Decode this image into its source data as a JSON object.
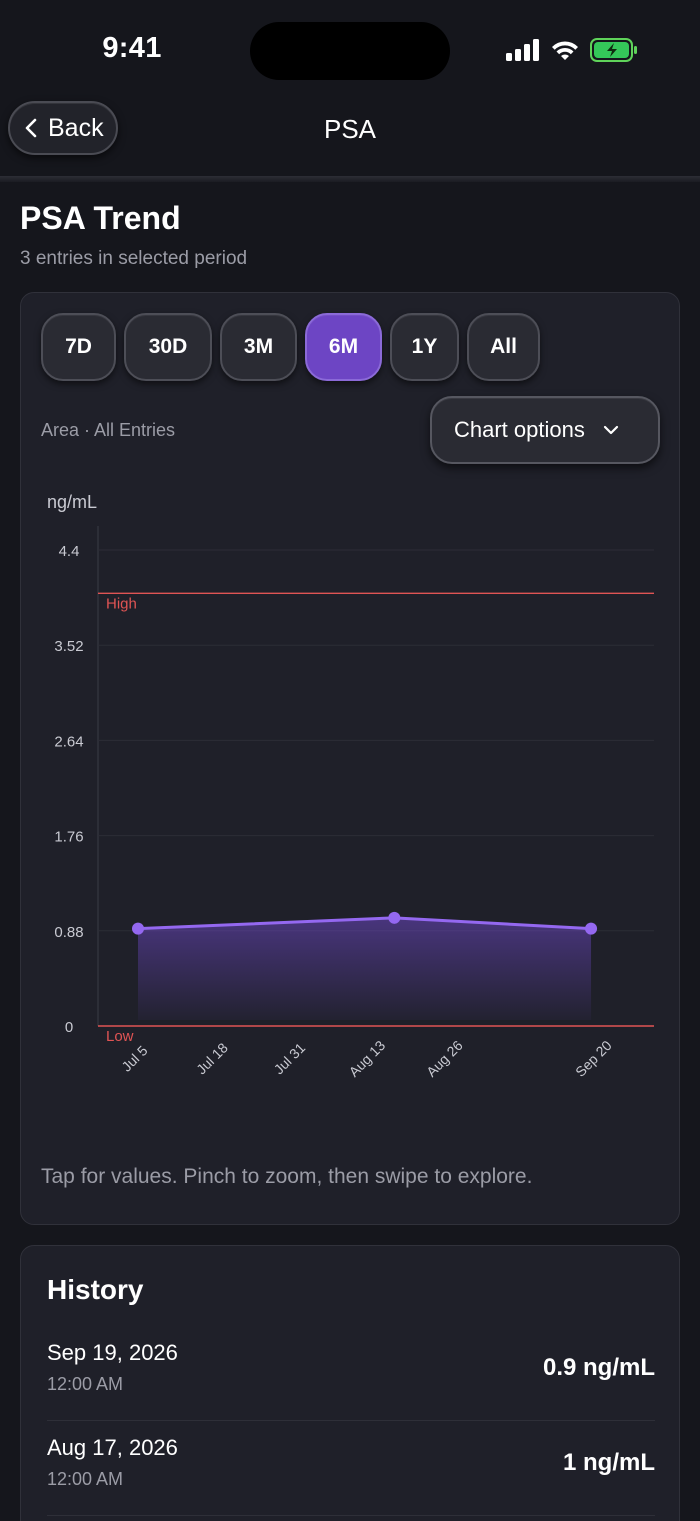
{
  "status": {
    "time": "9:41"
  },
  "nav": {
    "back_label": "Back",
    "title": "PSA"
  },
  "header": {
    "title": "PSA Trend",
    "subtitle": "3 entries in selected period"
  },
  "ranges": [
    {
      "label": "7D",
      "active": false
    },
    {
      "label": "30D",
      "active": false
    },
    {
      "label": "3M",
      "active": false
    },
    {
      "label": "6M",
      "active": true
    },
    {
      "label": "1Y",
      "active": false
    },
    {
      "label": "All",
      "active": false
    }
  ],
  "chart_controls": {
    "mode": "Area · All Entries",
    "options_label": "Chart options"
  },
  "chart_data": {
    "type": "area",
    "ylabel": "ng/mL",
    "ylim": [
      0,
      4.4
    ],
    "yticks": [
      "4.4",
      "3.52",
      "2.64",
      "1.76",
      "0.88",
      "0"
    ],
    "xticks": [
      "Jul 5",
      "Jul 18",
      "Jul 31",
      "Aug 13",
      "Aug 26",
      "Sep 20"
    ],
    "x": [
      "Jul 5",
      "Aug 17",
      "Sep 19"
    ],
    "values": [
      0.9,
      1.0,
      0.9
    ],
    "reference_lines": [
      {
        "label": "High",
        "value": 4.0,
        "color": "#e05454"
      },
      {
        "label": "Low",
        "value": 0,
        "color": "#e05454"
      }
    ],
    "series_color": "#9468f0",
    "grid": true
  },
  "hint": "Tap for values. Pinch to zoom, then swipe to explore.",
  "history": {
    "title": "History",
    "items": [
      {
        "date": "Sep 19, 2026",
        "time": "12:00 AM",
        "value": "0.9 ng/mL"
      },
      {
        "date": "Aug 17, 2026",
        "time": "12:00 AM",
        "value": "1 ng/mL"
      }
    ]
  }
}
